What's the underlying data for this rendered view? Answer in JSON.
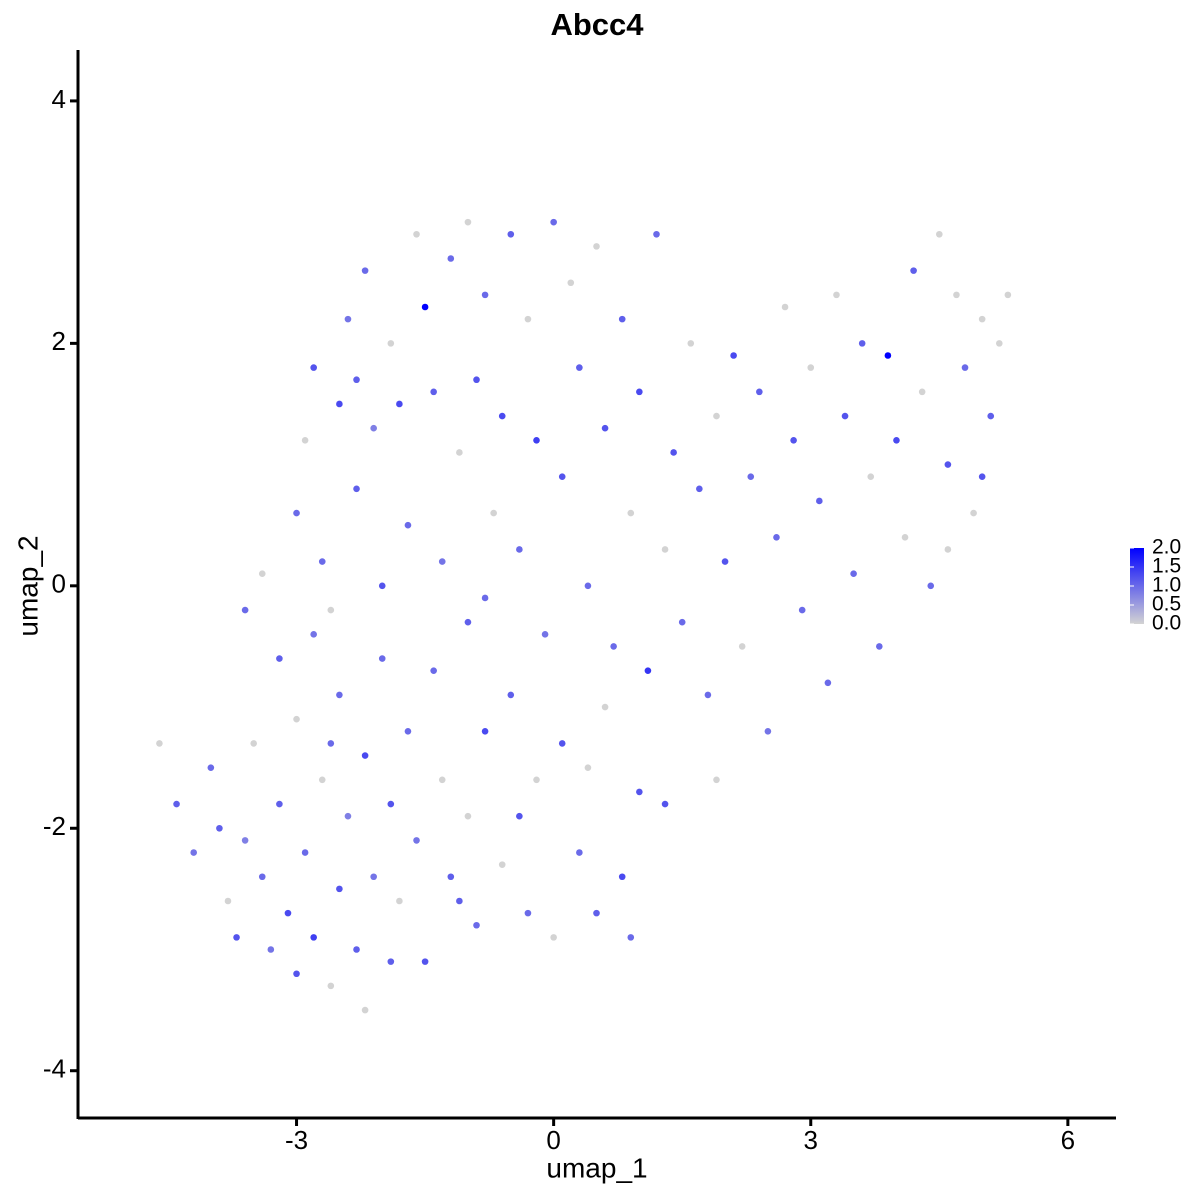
{
  "chart_data": {
    "type": "scatter",
    "title": "Abcc4",
    "x_label": "umap_1",
    "y_label": "umap_2",
    "xlim": [
      -5.55,
      6.55
    ],
    "ylim": [
      -4.39,
      4.42
    ],
    "xticks": [
      -3,
      0,
      3,
      6
    ],
    "yticks": [
      -4,
      -2,
      0,
      2,
      4
    ],
    "color_low": "#d3d3d3",
    "color_high": "#0000ff",
    "color_lim": [
      0,
      2.0
    ],
    "color_ticks": [
      {
        "value": 0,
        "label": "0.0"
      },
      0.5,
      {
        "value": 1,
        "label": "1.0"
      },
      1.5,
      {
        "value": 2,
        "label": "2.0"
      }
    ],
    "x": [
      -4.6,
      -4.4,
      -4.2,
      -4.0,
      -3.8,
      -3.7,
      -3.6,
      -3.5,
      -3.4,
      -3.3,
      -3.2,
      -3.1,
      -3.0,
      -3.0,
      -2.9,
      -2.8,
      -2.8,
      -2.7,
      -2.6,
      -2.5,
      -2.5,
      -2.4,
      -2.3,
      -2.2,
      -2.2,
      -2.1,
      -2.0,
      -1.9,
      -1.9,
      -1.8,
      -1.7,
      -1.6,
      -1.5,
      -1.4,
      -1.3,
      -1.2,
      -1.0,
      -0.9,
      -0.8,
      -0.6,
      -0.5,
      -0.3,
      -0.2,
      0.0,
      0.1,
      0.3,
      0.5,
      0.6,
      0.8,
      1.0,
      -3.6,
      -3.4,
      -3.2,
      -3.0,
      -2.9,
      -2.8,
      -2.7,
      -2.6,
      -2.5,
      -2.4,
      -2.3,
      -2.2,
      -2.1,
      -2.0,
      -1.9,
      -1.8,
      -1.7,
      -1.6,
      -1.5,
      -1.4,
      -1.3,
      -1.2,
      -1.1,
      -1.0,
      -1.0,
      -0.9,
      -0.8,
      -0.7,
      -0.6,
      -0.5,
      -0.4,
      -0.3,
      -0.2,
      -0.1,
      0.0,
      0.1,
      0.2,
      0.3,
      0.4,
      0.5,
      0.6,
      0.7,
      0.8,
      0.9,
      1.0,
      1.1,
      1.2,
      1.3,
      1.4,
      1.5,
      1.6,
      1.7,
      1.8,
      1.9,
      2.0,
      2.1,
      2.2,
      2.3,
      2.4,
      2.5,
      2.6,
      2.7,
      2.8,
      2.9,
      3.0,
      3.1,
      3.2,
      3.3,
      3.4,
      3.5,
      3.6,
      3.7,
      3.8,
      3.9,
      4.0,
      4.1,
      4.2,
      4.3,
      4.4,
      4.5,
      4.6,
      4.7,
      4.8,
      4.9,
      5.0,
      5.1,
      5.2,
      5.3,
      5.0,
      4.6,
      -3.9,
      -2.6,
      -1.1,
      0.4,
      1.3,
      1.9,
      -0.4,
      0.9,
      -2.3,
      -0.8
    ],
    "values": [
      -1.3,
      -1.8,
      -2.2,
      -1.5,
      -2.6,
      -2.9,
      -2.1,
      -1.3,
      -2.4,
      -3.0,
      -1.8,
      -2.7,
      -1.1,
      -3.2,
      -2.2,
      -0.4,
      -2.9,
      -1.6,
      -3.3,
      -2.5,
      -0.9,
      -1.9,
      -3.0,
      -1.4,
      -3.5,
      -2.4,
      -0.6,
      -1.8,
      -3.1,
      -2.6,
      -1.2,
      -2.1,
      -3.1,
      -0.7,
      -1.6,
      -2.4,
      -1.9,
      -2.8,
      -1.2,
      -2.3,
      -0.9,
      -2.7,
      -1.6,
      -2.9,
      -1.3,
      -2.2,
      -2.7,
      -1.0,
      -2.4,
      -1.7,
      -0.2,
      0.1,
      -0.6,
      0.6,
      1.2,
      1.8,
      0.2,
      -0.2,
      1.5,
      2.2,
      0.8,
      2.6,
      1.3,
      0.0,
      2.0,
      1.5,
      0.5,
      2.9,
      2.3,
      1.6,
      0.2,
      2.7,
      1.1,
      3.0,
      -0.3,
      1.7,
      2.4,
      0.6,
      1.4,
      2.9,
      0.3,
      2.2,
      1.2,
      -0.4,
      3.0,
      0.9,
      2.5,
      1.8,
      0.0,
      2.8,
      1.3,
      -0.5,
      2.2,
      0.6,
      1.6,
      -0.7,
      2.9,
      0.3,
      1.1,
      -0.3,
      2.0,
      0.8,
      -0.9,
      1.4,
      0.2,
      1.9,
      -0.5,
      0.9,
      1.6,
      -1.2,
      0.4,
      2.3,
      1.2,
      -0.2,
      1.8,
      0.7,
      -0.8,
      2.4,
      1.4,
      0.1,
      2.0,
      0.9,
      -0.5,
      1.9,
      1.2,
      0.4,
      2.6,
      1.6,
      0.0,
      2.9,
      1.0,
      2.4,
      1.8,
      0.6,
      2.2,
      1.4,
      2.0,
      2.4,
      0.9,
      0.3,
      -2.0,
      -1.3,
      -2.6,
      -1.5,
      -1.8,
      -1.6,
      -1.9,
      -2.9,
      1.7,
      -0.1
    ],
    "color_values": [
      0,
      1.1,
      0.9,
      1.0,
      0,
      1.2,
      0.8,
      0,
      1.0,
      0.9,
      1.1,
      1.3,
      0,
      1.2,
      1.0,
      0.9,
      1.4,
      0,
      0,
      1.2,
      1.0,
      0.8,
      1.1,
      1.3,
      0,
      0.9,
      1.0,
      1.2,
      1.1,
      0,
      1.0,
      0.9,
      1.2,
      1.0,
      0,
      1.1,
      0,
      1.0,
      1.3,
      0,
      1.1,
      1.0,
      0,
      0,
      1.2,
      1.0,
      1.1,
      0,
      1.3,
      1.2,
      1.0,
      0,
      1.1,
      1.0,
      0,
      1.2,
      1.0,
      0,
      1.3,
      0.9,
      1.1,
      1.0,
      0.8,
      1.2,
      0,
      1.3,
      1.0,
      0,
      2.0,
      1.1,
      0.9,
      1.0,
      0,
      0,
      1.1,
      1.2,
      1.0,
      0,
      1.3,
      1.1,
      1.0,
      0,
      1.4,
      0.9,
      1.0,
      1.2,
      0,
      1.1,
      1.0,
      0,
      1.2,
      1.0,
      1.1,
      0,
      1.3,
      1.5,
      1.0,
      0,
      1.2,
      1.0,
      0,
      1.1,
      1.0,
      0,
      1.2,
      1.3,
      0,
      1.0,
      1.1,
      0.9,
      1.0,
      0,
      1.2,
      1.0,
      0,
      1.1,
      1.0,
      0,
      1.2,
      1.0,
      1.1,
      0,
      1.0,
      2.0,
      1.3,
      0,
      1.1,
      0,
      1.0,
      0,
      1.2,
      0,
      1.0,
      0,
      0,
      1.1,
      0,
      0,
      1.2,
      0,
      1.1,
      1.0,
      1.1,
      0,
      1.2,
      0,
      1.2,
      1.0,
      1.1,
      1.0
    ]
  }
}
